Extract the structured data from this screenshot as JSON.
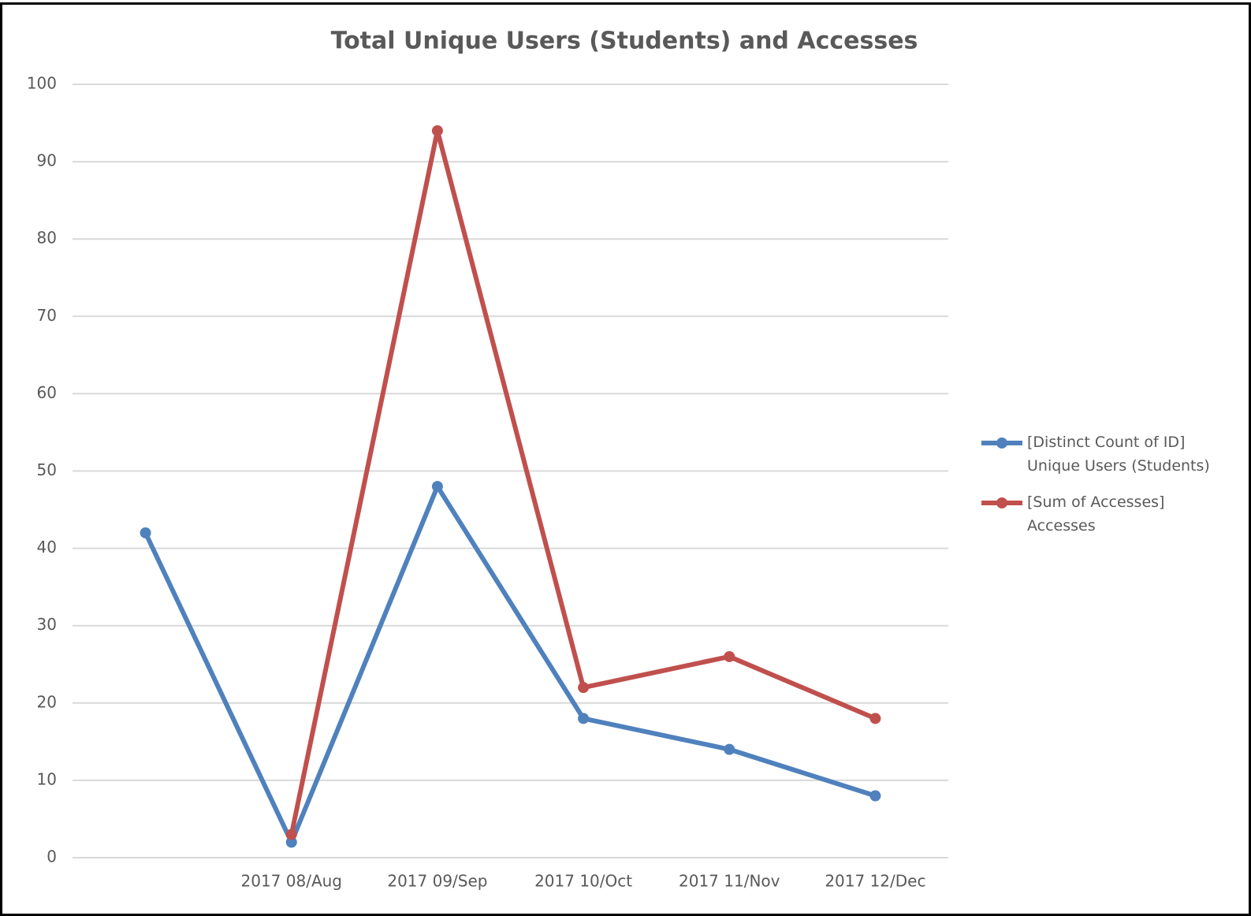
{
  "chart_data": {
    "type": "line",
    "title": "Total Unique Users (Students) and Accesses",
    "categories": [
      null,
      "2017 08/Aug",
      "2017 09/Sep",
      "2017 10/Oct",
      "2017 11/Nov",
      "2017 12/Dec"
    ],
    "series": [
      {
        "name": "[Distinct Count of ID] Unique Users (Students)",
        "color": "#4f81bd",
        "values": [
          42,
          2,
          48,
          18,
          14,
          8
        ]
      },
      {
        "name": "[Sum of Accesses] Accesses",
        "color": "#c0504d",
        "values": [
          null,
          3,
          94,
          22,
          26,
          18
        ]
      }
    ],
    "ylim": [
      0,
      100
    ],
    "yticks": [
      0,
      10,
      20,
      30,
      40,
      50,
      60,
      70,
      80,
      90,
      100
    ],
    "grid": true,
    "legend": "right"
  }
}
